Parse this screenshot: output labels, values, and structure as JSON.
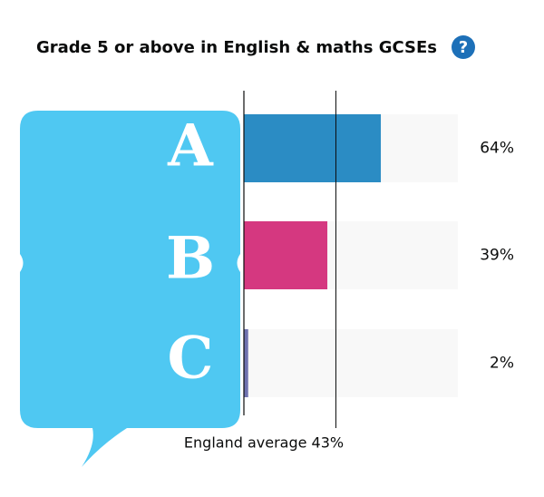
{
  "chart_data": {
    "type": "bar",
    "orientation": "horizontal",
    "title": "Grade 5 or above in English & maths GCSEs",
    "help_icon": "?",
    "categories": [
      "A",
      "B",
      "C"
    ],
    "values": [
      64,
      39,
      2
    ],
    "value_labels": [
      "64%",
      "39%",
      "2%"
    ],
    "colors": [
      "#2b8cc4",
      "#d53880",
      "#6f72af"
    ],
    "track_color": "#f8f8f8",
    "xlim": [
      0,
      100
    ],
    "reference": {
      "label": "England average 43%",
      "value": 43
    }
  }
}
